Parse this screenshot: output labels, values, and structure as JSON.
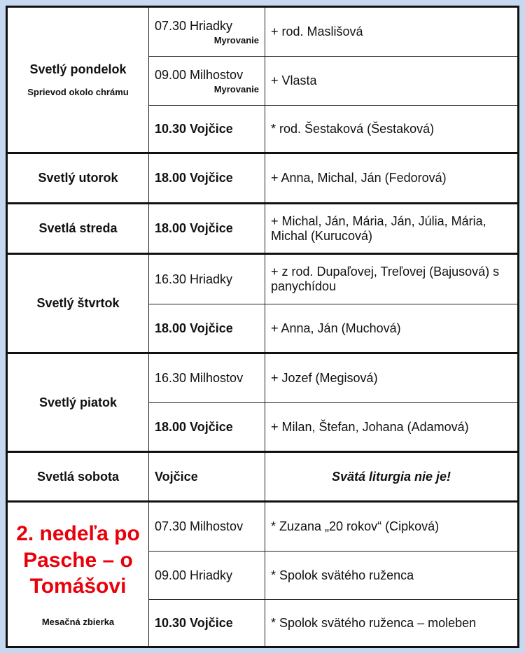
{
  "groups": [
    {
      "day": "Svetlý pondelok",
      "sub": "Sprievod okolo chrámu",
      "rows": [
        {
          "time": "07.30 Hriadky",
          "note": "Myrovanie",
          "intention": "+ rod. Maslišová"
        },
        {
          "time": "09.00 Milhostov",
          "note": "Myrovanie",
          "intention": "+ Vlasta"
        },
        {
          "time": "10.30 Vojčice",
          "intention": "* rod. Šestaková (Šestaková)"
        }
      ]
    },
    {
      "day": "Svetlý utorok",
      "rows": [
        {
          "time": "18.00 Vojčice",
          "intention": "+ Anna, Michal, Ján (Fedorová)"
        }
      ]
    },
    {
      "day": "Svetlá streda",
      "rows": [
        {
          "time": "18.00 Vojčice",
          "intention": "+ Michal, Ján, Mária, Ján, Júlia, Mária, Michal (Kurucová)"
        }
      ]
    },
    {
      "day": "Svetlý štvrtok",
      "rows": [
        {
          "time": "16.30 Hriadky",
          "intention": "+ z rod. Dupaľovej, Treľovej (Bajusová) s panychídou"
        },
        {
          "time": "18.00 Vojčice",
          "intention": "+ Anna, Ján (Muchová)"
        }
      ]
    },
    {
      "day": "Svetlý piatok",
      "rows": [
        {
          "time": "16.30 Milhostov",
          "intention": "+ Jozef (Megisová)"
        },
        {
          "time": "18.00 Vojčice",
          "intention": "+ Milan, Štefan, Johana (Adamová)"
        }
      ]
    },
    {
      "day": "Svetlá sobota",
      "rows": [
        {
          "time": "Vojčice",
          "intention": "Svätá liturgia nie je!"
        }
      ]
    },
    {
      "day": "2. nedeľa po Pasche – o Tomášovi",
      "sub": "Mesačná zbierka",
      "rows": [
        {
          "time": "07.30 Milhostov",
          "intention": "* Zuzana „20 rokov“ (Cipková)"
        },
        {
          "time": "09.00 Hriadky",
          "intention": "* Spolok svätého ruženca"
        },
        {
          "time": "10.30 Vojčice",
          "intention": "* Spolok svätého ruženca – moleben"
        }
      ]
    }
  ],
  "colors": {
    "feast_title": "#e8000b",
    "background": "#c6d9f1"
  }
}
